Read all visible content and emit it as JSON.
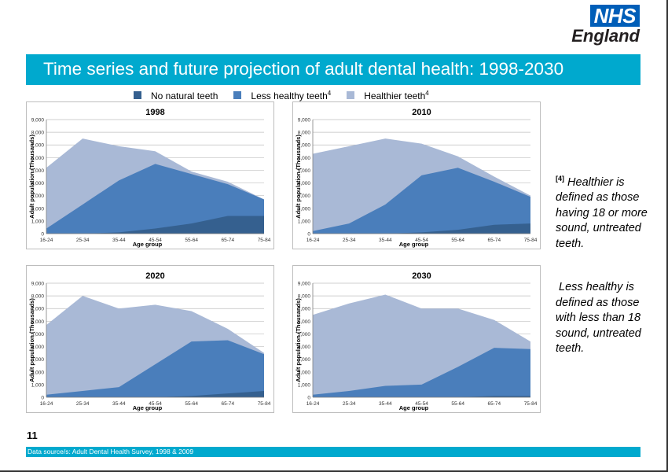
{
  "logo": {
    "line1": "NHS",
    "line2": "England"
  },
  "title": "Time series and future projection of adult dental health: 1998-2030",
  "legend": [
    {
      "label": "No natural teeth",
      "sup": "",
      "color": "#35608f"
    },
    {
      "label": "Less healthy teeth",
      "sup": "4",
      "color": "#4a7ebb"
    },
    {
      "label": "Healthier teeth",
      "sup": "4",
      "color": "#a9b9d6"
    }
  ],
  "notes": {
    "healthier": {
      "marker": "[4]",
      "text": " Healthier is defined as those having 18 or more sound, untreated teeth."
    },
    "less_healthy": {
      "text": "Less healthy is defined as those with less than 18 sound, untreated teeth."
    }
  },
  "page_number": "11",
  "source": "Data source/s: Adult Dental Health Survey, 1998 & 2009",
  "colors": {
    "accent": "#00A9CE",
    "nhs_blue": "#005EB8"
  },
  "chart_data": [
    {
      "type": "area",
      "title": "1998",
      "xlabel": "Age group",
      "ylabel": "Adult population (Thousands)",
      "ylim": [
        0,
        9000
      ],
      "yticks": [
        "0",
        "1,000",
        "2,000",
        "3,000",
        "4,000",
        "5,000",
        "6,000",
        "7,000",
        "8,000",
        "9,000"
      ],
      "categories": [
        "16-24",
        "25-34",
        "35-44",
        "45-54",
        "55-64",
        "65-74",
        "75-84"
      ],
      "stacked": false,
      "grid": true,
      "series": [
        {
          "name": "Healthier teeth",
          "color": "#a9b9d6",
          "values": [
            5200,
            7500,
            6900,
            6500,
            4900,
            4100,
            2700
          ]
        },
        {
          "name": "Less healthy teeth",
          "color": "#4a7ebb",
          "values": [
            400,
            2300,
            4200,
            5500,
            4700,
            3900,
            2700
          ]
        },
        {
          "name": "No natural teeth",
          "color": "#35608f",
          "values": [
            0,
            0,
            100,
            400,
            800,
            1400,
            1400
          ]
        }
      ]
    },
    {
      "type": "area",
      "title": "2010",
      "xlabel": "Age group",
      "ylabel": "Adult population (Thousands)",
      "ylim": [
        0,
        9000
      ],
      "yticks": [
        "0",
        "1,000",
        "2,000",
        "3,000",
        "4,000",
        "5,000",
        "6,000",
        "7,000",
        "8,000",
        "9,000"
      ],
      "categories": [
        "16-24",
        "25-34",
        "35-44",
        "45-54",
        "55-64",
        "65-74",
        "75-84"
      ],
      "stacked": false,
      "grid": true,
      "series": [
        {
          "name": "Healthier teeth",
          "color": "#a9b9d6",
          "values": [
            6300,
            6900,
            7500,
            7100,
            6100,
            4500,
            3000
          ]
        },
        {
          "name": "Less healthy teeth",
          "color": "#4a7ebb",
          "values": [
            200,
            800,
            2300,
            4600,
            5200,
            4100,
            2900
          ]
        },
        {
          "name": "No natural teeth",
          "color": "#35608f",
          "values": [
            0,
            0,
            0,
            100,
            300,
            700,
            800
          ]
        }
      ]
    },
    {
      "type": "area",
      "title": "2020",
      "xlabel": "Age group",
      "ylabel": "Adult population (Thousands)",
      "ylim": [
        0,
        9000
      ],
      "yticks": [
        "0",
        "1,000",
        "2,000",
        "3,000",
        "4,000",
        "5,000",
        "6,000",
        "7,000",
        "8,000",
        "9,000"
      ],
      "categories": [
        "16-24",
        "25-34",
        "35-44",
        "45-54",
        "55-64",
        "65-74",
        "75-84"
      ],
      "stacked": false,
      "grid": true,
      "series": [
        {
          "name": "Healthier teeth",
          "color": "#a9b9d6",
          "values": [
            5700,
            8000,
            7000,
            7300,
            6800,
            5400,
            3500
          ]
        },
        {
          "name": "Less healthy teeth",
          "color": "#4a7ebb",
          "values": [
            200,
            500,
            800,
            2600,
            4400,
            4500,
            3400
          ]
        },
        {
          "name": "No natural teeth",
          "color": "#35608f",
          "values": [
            0,
            0,
            0,
            0,
            100,
            300,
            500
          ]
        }
      ]
    },
    {
      "type": "area",
      "title": "2030",
      "xlabel": "Age group",
      "ylabel": "Adult population (Thousands)",
      "ylim": [
        0,
        9000
      ],
      "yticks": [
        "0",
        "1,000",
        "2,000",
        "3,000",
        "4,000",
        "5,000",
        "6,000",
        "7,000",
        "8,000",
        "9,000"
      ],
      "categories": [
        "16-24",
        "25-34",
        "35-44",
        "45-54",
        "55-64",
        "65-74",
        "75-84"
      ],
      "stacked": false,
      "grid": true,
      "series": [
        {
          "name": "Healthier teeth",
          "color": "#a9b9d6",
          "values": [
            6500,
            7400,
            8100,
            7000,
            7000,
            6100,
            4400
          ]
        },
        {
          "name": "Less healthy teeth",
          "color": "#4a7ebb",
          "values": [
            200,
            500,
            900,
            1000,
            2400,
            3900,
            3800
          ]
        },
        {
          "name": "No natural teeth",
          "color": "#35608f",
          "values": [
            0,
            0,
            0,
            0,
            0,
            100,
            100
          ]
        }
      ]
    }
  ]
}
